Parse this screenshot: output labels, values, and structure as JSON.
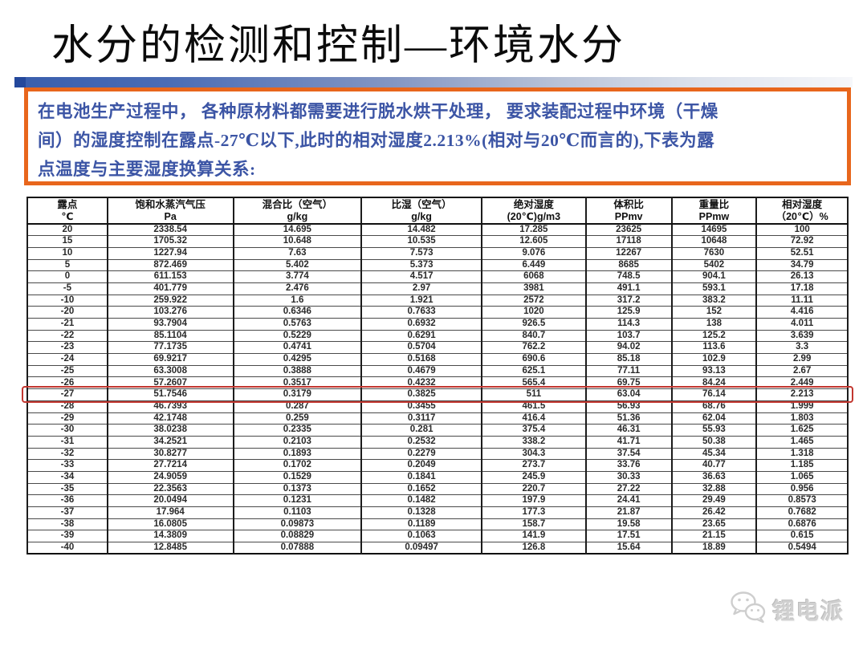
{
  "title": "水分的检测和控制—环境水分",
  "intro": {
    "text": "在电池生产过程中， 各种原材料都需要进行脱水烘干处理， 要求装配过程中环境（干燥\n间）的湿度控制在露点-27℃以下,此时的相对湿度2.213%(相对与20℃而言的),下表为露\n点温度与主要湿度换算关系:"
  },
  "table": {
    "headers": [
      {
        "line1": "露点",
        "line2": "℃"
      },
      {
        "line1": "饱和水蒸汽气压",
        "line2": "Pa"
      },
      {
        "line1": "混合比（空气）",
        "line2": "g/kg"
      },
      {
        "line1": "比湿（空气）",
        "line2": "g/kg"
      },
      {
        "line1": "绝对湿度",
        "line2": "(20℃)g/m3"
      },
      {
        "line1": "体积比",
        "line2": "PPmv"
      },
      {
        "line1": "重量比",
        "line2": "PPmw"
      },
      {
        "line1": "相对湿度",
        "line2": "（20℃）%"
      }
    ],
    "rows": [
      [
        "20",
        "2338.54",
        "14.695",
        "14.482",
        "17.285",
        "23625",
        "14695",
        "100"
      ],
      [
        "15",
        "1705.32",
        "10.648",
        "10.535",
        "12.605",
        "17118",
        "10648",
        "72.92"
      ],
      [
        "10",
        "1227.94",
        "7.63",
        "7.573",
        "9.076",
        "12267",
        "7630",
        "52.51"
      ],
      [
        "5",
        "872.469",
        "5.402",
        "5.373",
        "6.449",
        "8685",
        "5402",
        "34.79"
      ],
      [
        "0",
        "611.153",
        "3.774",
        "4.517",
        "6068",
        "748.5",
        "904.1",
        "26.13"
      ],
      [
        "-5",
        "401.779",
        "2.476",
        "2.97",
        "3981",
        "491.1",
        "593.1",
        "17.18"
      ],
      [
        "-10",
        "259.922",
        "1.6",
        "1.921",
        "2572",
        "317.2",
        "383.2",
        "11.11"
      ],
      [
        "-20",
        "103.276",
        "0.6346",
        "0.7633",
        "1020",
        "125.9",
        "152",
        "4.416"
      ],
      [
        "-21",
        "93.7904",
        "0.5763",
        "0.6932",
        "926.5",
        "114.3",
        "138",
        "4.011"
      ],
      [
        "-22",
        "85.1104",
        "0.5229",
        "0.6291",
        "840.7",
        "103.7",
        "125.2",
        "3.639"
      ],
      [
        "-23",
        "77.1735",
        "0.4741",
        "0.5704",
        "762.2",
        "94.02",
        "113.6",
        "3.3"
      ],
      [
        "-24",
        "69.9217",
        "0.4295",
        "0.5168",
        "690.6",
        "85.18",
        "102.9",
        "2.99"
      ],
      [
        "-25",
        "63.3008",
        "0.3888",
        "0.4679",
        "625.1",
        "77.11",
        "93.13",
        "2.67"
      ],
      [
        "-26",
        "57.2607",
        "0.3517",
        "0.4232",
        "565.4",
        "69.75",
        "84.24",
        "2.449"
      ],
      [
        "-27",
        "51.7546",
        "0.3179",
        "0.3825",
        "511",
        "63.04",
        "76.14",
        "2.213"
      ],
      [
        "-28",
        "46.7393",
        "0.287",
        "0.3455",
        "461.5",
        "56.93",
        "68.76",
        "1.999"
      ],
      [
        "-29",
        "42.1748",
        "0.259",
        "0.3117",
        "416.4",
        "51.36",
        "62.04",
        "1.803"
      ],
      [
        "-30",
        "38.0238",
        "0.2335",
        "0.281",
        "375.4",
        "46.31",
        "55.93",
        "1.625"
      ],
      [
        "-31",
        "34.2521",
        "0.2103",
        "0.2532",
        "338.2",
        "41.71",
        "50.38",
        "1.465"
      ],
      [
        "-32",
        "30.8277",
        "0.1893",
        "0.2279",
        "304.3",
        "37.54",
        "45.34",
        "1.318"
      ],
      [
        "-33",
        "27.7214",
        "0.1702",
        "0.2049",
        "273.7",
        "33.76",
        "40.77",
        "1.185"
      ],
      [
        "-34",
        "24.9059",
        "0.1529",
        "0.1841",
        "245.9",
        "30.33",
        "36.63",
        "1.065"
      ],
      [
        "-35",
        "22.3563",
        "0.1373",
        "0.1652",
        "220.7",
        "27.22",
        "32.88",
        "0.956"
      ],
      [
        "-36",
        "20.0494",
        "0.1231",
        "0.1482",
        "197.9",
        "24.41",
        "29.49",
        "0.8573"
      ],
      [
        "-37",
        "17.964",
        "0.1103",
        "0.1328",
        "177.3",
        "21.87",
        "26.42",
        "0.7682"
      ],
      [
        "-38",
        "16.0805",
        "0.09873",
        "0.1189",
        "158.7",
        "19.58",
        "23.65",
        "0.6876"
      ],
      [
        "-39",
        "14.3809",
        "0.08829",
        "0.1063",
        "141.9",
        "17.51",
        "21.15",
        "0.615"
      ],
      [
        "-40",
        "12.8485",
        "0.07888",
        "0.09497",
        "126.8",
        "15.64",
        "18.89",
        "0.5494"
      ]
    ],
    "highlight_dew_point": "-27",
    "highlight_color": "#c2362f"
  },
  "colors": {
    "title_bar_blue": "#3a5fae",
    "intro_border_orange": "#e8661c",
    "intro_text_blue": "#3c55a5",
    "highlight_red": "#c2362f"
  },
  "logo": {
    "text": "锂电派",
    "icon": "wechat-chat-bubbles-icon"
  }
}
